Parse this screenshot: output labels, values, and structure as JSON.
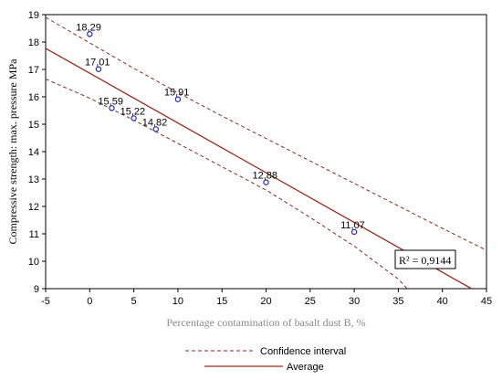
{
  "chart_data": {
    "type": "scatter",
    "title": "",
    "xlabel": "Percentage contamination of basalt dust B, %",
    "ylabel": "Compressive strength: max. pressure MPa",
    "xlim": [
      -5,
      45
    ],
    "ylim": [
      9,
      19
    ],
    "xticks": [
      -5,
      0,
      5,
      10,
      15,
      20,
      25,
      30,
      35,
      40,
      45
    ],
    "yticks": [
      9,
      10,
      11,
      12,
      13,
      14,
      15,
      16,
      17,
      18,
      19
    ],
    "grid": false,
    "points": [
      {
        "x": 0,
        "y": 18.29,
        "label": "18,29"
      },
      {
        "x": 1,
        "y": 17.01,
        "label": "17,01"
      },
      {
        "x": 2.5,
        "y": 15.59,
        "label": "15,59"
      },
      {
        "x": 5,
        "y": 15.22,
        "label": "15,22"
      },
      {
        "x": 7.5,
        "y": 14.82,
        "label": "14,82"
      },
      {
        "x": 10,
        "y": 15.91,
        "label": "15,91"
      },
      {
        "x": 20,
        "y": 12.88,
        "label": "12,88"
      },
      {
        "x": 30,
        "y": 11.07,
        "label": "11,07"
      }
    ],
    "fit_line": {
      "x": [
        -5,
        43.3
      ],
      "y": [
        17.77,
        9.0
      ]
    },
    "confidence_upper": {
      "x": [
        -5,
        0,
        5,
        10,
        15,
        20,
        25,
        30,
        35,
        40,
        45
      ],
      "y": [
        18.9,
        17.97,
        17.04,
        16.15,
        15.3,
        14.48,
        13.66,
        12.84,
        12.02,
        11.2,
        10.4
      ]
    },
    "confidence_lower": {
      "x": [
        -5,
        0,
        5,
        10,
        15,
        20,
        25,
        30,
        35,
        36
      ],
      "y": [
        16.65,
        15.95,
        15.15,
        14.3,
        13.45,
        12.6,
        11.6,
        10.55,
        9.35,
        9.0
      ]
    },
    "r2_label": "R² = 0,9144",
    "legend": [
      {
        "name": "Confidence interval",
        "style": "dashed",
        "color": "#8b2a1a"
      },
      {
        "name": "Average",
        "style": "solid",
        "color": "#9b2a1a"
      }
    ],
    "colors": {
      "line": "#9b2a1a",
      "dashed": "#8b2a1a",
      "marker": "#2222cc"
    }
  }
}
